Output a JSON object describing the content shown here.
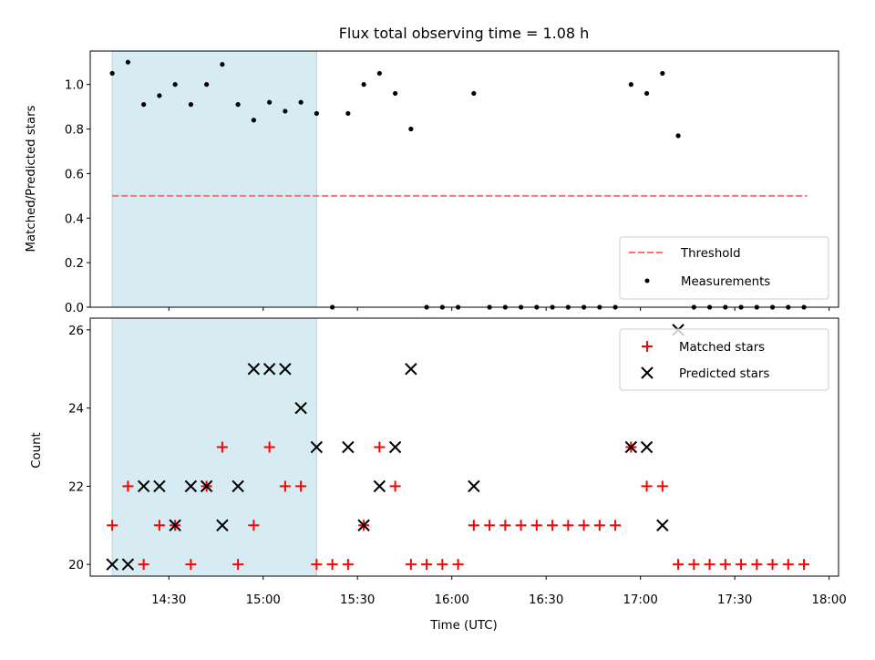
{
  "chart_data": [
    {
      "type": "scatter",
      "title": "Flux total observing time = 1.08 h",
      "ylabel": "Matched/Predicted stars",
      "xlabel": "",
      "xlim": [
        "14:05",
        "18:03"
      ],
      "ylim": [
        0,
        1.15
      ],
      "yticks": [
        "0.0",
        "0.2",
        "0.4",
        "0.6",
        "0.8",
        "1.0"
      ],
      "shaded_region": {
        "x_start": "14:12",
        "x_end": "15:17",
        "color": "#add8e6"
      },
      "legend": {
        "placement": "lower-right",
        "entries": [
          "Threshold",
          "Measurements"
        ]
      },
      "series": [
        {
          "name": "Threshold",
          "kind": "dashed-line",
          "color": "#ff7070",
          "x": [
            "14:12",
            "17:53"
          ],
          "y": [
            0.5,
            0.5
          ]
        },
        {
          "name": "Measurements",
          "kind": "points",
          "color": "#000000",
          "x": [
            "14:12",
            "14:17",
            "14:22",
            "14:27",
            "14:32",
            "14:37",
            "14:42",
            "14:47",
            "14:52",
            "14:57",
            "15:02",
            "15:07",
            "15:12",
            "15:17",
            "15:22",
            "15:27",
            "15:32",
            "15:37",
            "15:42",
            "15:47",
            "15:52",
            "15:57",
            "16:02",
            "16:07",
            "16:12",
            "16:17",
            "16:22",
            "16:27",
            "16:32",
            "16:37",
            "16:42",
            "16:47",
            "16:52",
            "16:57",
            "17:02",
            "17:07",
            "17:12",
            "17:17",
            "17:22",
            "17:27",
            "17:32",
            "17:37",
            "17:42",
            "17:47",
            "17:52"
          ],
          "y": [
            1.05,
            1.1,
            0.91,
            0.95,
            1.0,
            0.91,
            1.0,
            1.09,
            0.91,
            0.84,
            0.92,
            0.88,
            0.92,
            0.87,
            0.0,
            0.87,
            1.0,
            1.05,
            0.96,
            0.8,
            0.0,
            0.0,
            0.0,
            0.96,
            0.0,
            0.0,
            0.0,
            0.0,
            0.0,
            0.0,
            0.0,
            0.0,
            0.0,
            1.0,
            0.96,
            1.05,
            0.77,
            0.0,
            0.0,
            0.0,
            0.0,
            0.0,
            0.0,
            0.0,
            0.0
          ]
        }
      ]
    },
    {
      "type": "scatter",
      "title": "",
      "ylabel": "Count",
      "xlabel": "Time (UTC)",
      "xlim": [
        "14:05",
        "18:03"
      ],
      "ylim": [
        19.7,
        26.3
      ],
      "yticks": [
        "20",
        "22",
        "24",
        "26"
      ],
      "xticks": [
        "14:30",
        "15:00",
        "15:30",
        "16:00",
        "16:30",
        "17:00",
        "17:30",
        "18:00"
      ],
      "shaded_region": {
        "x_start": "14:12",
        "x_end": "15:17",
        "color": "#add8e6"
      },
      "legend": {
        "placement": "top-right",
        "entries": [
          "Matched stars",
          "Predicted stars"
        ]
      },
      "series": [
        {
          "name": "Matched stars",
          "marker": "plus",
          "color": "#ff0000",
          "x": [
            "14:12",
            "14:17",
            "14:22",
            "14:27",
            "14:32",
            "14:37",
            "14:42",
            "14:47",
            "14:52",
            "14:57",
            "15:02",
            "15:07",
            "15:12",
            "15:17",
            "15:22",
            "15:27",
            "15:32",
            "15:37",
            "15:42",
            "15:47",
            "15:52",
            "15:57",
            "16:02",
            "16:07",
            "16:12",
            "16:17",
            "16:22",
            "16:27",
            "16:32",
            "16:37",
            "16:42",
            "16:47",
            "16:52",
            "16:57",
            "17:02",
            "17:07",
            "17:12",
            "17:17",
            "17:22",
            "17:27",
            "17:32",
            "17:37",
            "17:42",
            "17:47",
            "17:52"
          ],
          "y": [
            21,
            22,
            20,
            21,
            21,
            20,
            22,
            23,
            20,
            21,
            23,
            22,
            22,
            20,
            20,
            20,
            21,
            23,
            22,
            20,
            20,
            20,
            20,
            21,
            21,
            21,
            21,
            21,
            21,
            21,
            21,
            21,
            21,
            23,
            22,
            22,
            20,
            20,
            20,
            20,
            20,
            20,
            20,
            20,
            20
          ]
        },
        {
          "name": "Predicted stars",
          "marker": "x",
          "color": "#000000",
          "x": [
            "14:12",
            "14:17",
            "14:22",
            "14:27",
            "14:32",
            "14:37",
            "14:42",
            "14:47",
            "14:52",
            "14:57",
            "15:02",
            "15:07",
            "15:12",
            "15:17",
            "15:27",
            "15:32",
            "15:37",
            "15:42",
            "15:47",
            "16:07",
            "16:57",
            "17:02",
            "17:07",
            "17:12"
          ],
          "y": [
            20,
            20,
            22,
            22,
            21,
            22,
            22,
            21,
            22,
            25,
            25,
            25,
            24,
            23,
            23,
            21,
            22,
            23,
            25,
            22,
            23,
            23,
            21,
            26
          ]
        }
      ]
    }
  ]
}
